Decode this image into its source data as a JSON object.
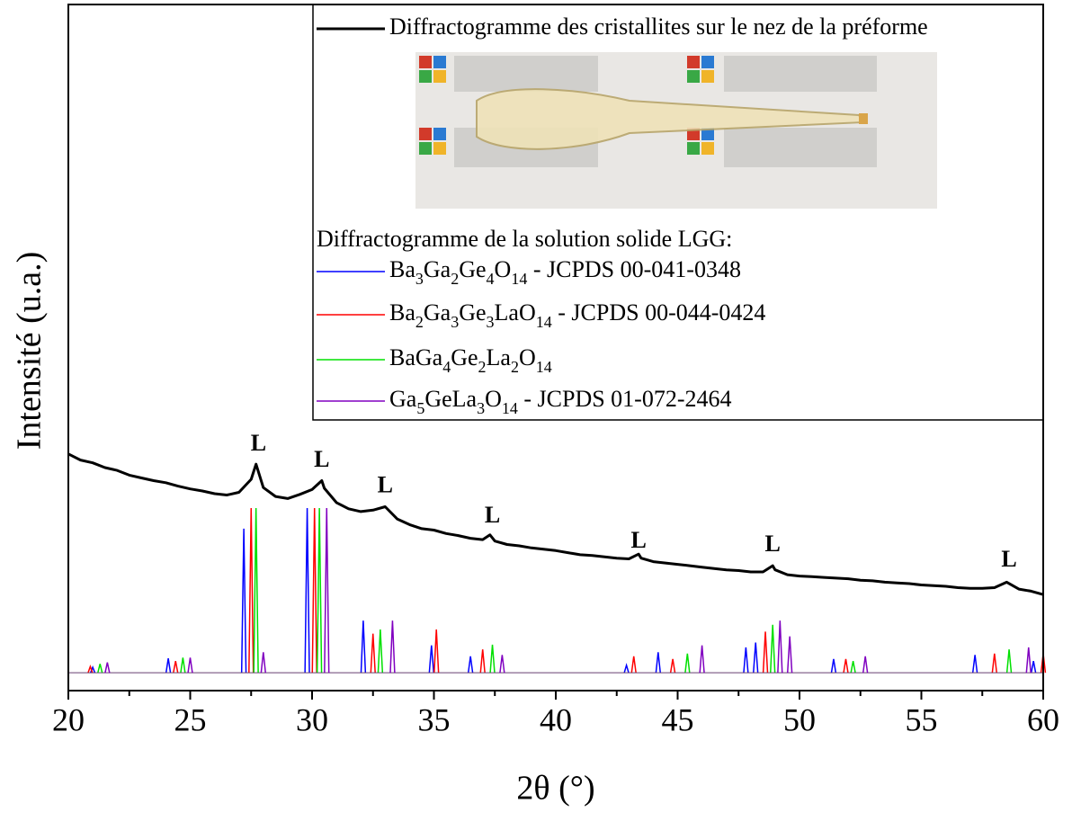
{
  "chart_data": {
    "type": "line",
    "xlabel": "2θ (°)",
    "ylabel": "Intensité (u.a.)",
    "xlim": [
      20,
      60
    ],
    "ylim": [
      0,
      100
    ],
    "xticks": [
      20,
      25,
      30,
      35,
      40,
      45,
      50,
      55,
      60
    ],
    "xminorticks": [
      22.5,
      27.5,
      32.5,
      37.5,
      42.5,
      47.5,
      52.5,
      57.5
    ],
    "legend": "upper right",
    "legend_title": "Diffractogramme de la solution solide LGG:",
    "baseline": 2.6,
    "series": [
      {
        "name": "Diffractogramme des cristallites sur le nez de la préforme",
        "color": "#000000",
        "style": "line",
        "x": [
          20,
          20.5,
          21,
          21.5,
          22,
          22.5,
          23,
          23.5,
          24,
          24.5,
          25,
          25.5,
          26,
          26.5,
          27,
          27.5,
          27.7,
          28,
          28.5,
          29,
          29.5,
          30,
          30.4,
          30.5,
          31,
          31.5,
          32,
          32.5,
          33,
          33.5,
          34,
          34.5,
          35,
          35.5,
          36,
          36.5,
          37,
          37.3,
          37.5,
          38,
          38.5,
          39,
          39.5,
          40,
          40.5,
          41,
          41.5,
          42,
          42.5,
          43,
          43.4,
          43.5,
          44,
          44.5,
          45,
          45.5,
          46,
          46.5,
          47,
          47.5,
          48,
          48.5,
          48.9,
          49,
          49.5,
          50,
          50.5,
          51,
          51.5,
          52,
          52.5,
          53,
          53.5,
          54,
          54.5,
          55,
          55.5,
          56,
          56.5,
          57,
          57.5,
          58,
          58.5,
          59,
          59.5,
          60
        ],
        "values": [
          34.5,
          33.6,
          33.2,
          32.5,
          32.1,
          31.4,
          31.0,
          30.6,
          30.3,
          29.8,
          29.4,
          29.1,
          28.7,
          28.5,
          28.9,
          30.8,
          33.0,
          29.6,
          28.3,
          28.0,
          28.6,
          29.3,
          30.6,
          29.5,
          27.4,
          26.5,
          26.1,
          26.3,
          26.8,
          25.0,
          24.2,
          23.6,
          23.4,
          22.9,
          22.6,
          22.2,
          22.0,
          22.7,
          21.8,
          21.3,
          21.1,
          20.8,
          20.6,
          20.4,
          20.1,
          19.8,
          19.7,
          19.5,
          19.3,
          19.2,
          19.9,
          19.3,
          18.8,
          18.6,
          18.4,
          18.2,
          18.0,
          17.8,
          17.6,
          17.5,
          17.3,
          17.3,
          18.2,
          17.6,
          16.9,
          16.7,
          16.6,
          16.5,
          16.4,
          16.3,
          16.1,
          16.0,
          15.8,
          15.7,
          15.6,
          15.4,
          15.3,
          15.2,
          15.0,
          14.9,
          14.9,
          15.0,
          15.8,
          14.8,
          14.5,
          14.0
        ]
      },
      {
        "name": "Ba3Ga2Ge4O14 - JCPDS 00-041-0348",
        "color": "#0000ff",
        "style": "stick",
        "x": [
          21.0,
          24.1,
          27.2,
          29.8,
          32.1,
          34.9,
          36.5,
          42.9,
          44.2,
          47.8,
          48.2,
          51.4,
          57.2,
          59.6
        ],
        "values": [
          3.4,
          4.7,
          23.6,
          26.6,
          10.2,
          6.6,
          5.0,
          3.7,
          5.6,
          6.3,
          7.0,
          4.6,
          5.2,
          4.3
        ]
      },
      {
        "name": "Ba2Ga3Ge3LaO14 - JCPDS 00-044-0424",
        "color": "#ff0000",
        "style": "stick",
        "x": [
          20.9,
          24.4,
          27.5,
          30.1,
          32.5,
          35.1,
          37.0,
          43.2,
          44.8,
          48.6,
          51.9,
          58.0,
          60.0
        ],
        "values": [
          3.5,
          4.3,
          26.6,
          26.6,
          8.3,
          8.9,
          6.0,
          5.0,
          4.6,
          8.6,
          4.6,
          5.4,
          5.4
        ]
      },
      {
        "name": "BaGa4Ge2La2O14",
        "color": "#00e000",
        "style": "stick",
        "x": [
          21.3,
          24.7,
          27.7,
          30.3,
          32.8,
          37.4,
          45.4,
          48.9,
          52.2,
          58.6
        ],
        "values": [
          3.9,
          4.8,
          26.6,
          26.6,
          8.9,
          6.7,
          5.4,
          9.6,
          4.3,
          6.0
        ]
      },
      {
        "name": "Ga5GeLa3O14 - JCPDS 01-072-2464",
        "color": "#8000c0",
        "style": "stick",
        "x": [
          21.6,
          25.0,
          28.0,
          30.6,
          33.3,
          37.8,
          46.0,
          49.2,
          49.6,
          52.7,
          59.4
        ],
        "values": [
          4.1,
          4.8,
          5.6,
          26.6,
          10.2,
          5.2,
          6.6,
          10.2,
          7.9,
          5.0,
          6.3
        ]
      }
    ],
    "annotations": [
      {
        "text": "L",
        "x": 27.8,
        "y": 35.8
      },
      {
        "text": "L",
        "x": 30.4,
        "y": 33.4
      },
      {
        "text": "L",
        "x": 33.0,
        "y": 29.7
      },
      {
        "text": "L",
        "x": 37.4,
        "y": 25.3
      },
      {
        "text": "L",
        "x": 43.4,
        "y": 21.6
      },
      {
        "text": "L",
        "x": 48.9,
        "y": 21.1
      },
      {
        "text": "L",
        "x": 58.6,
        "y": 18.9
      }
    ]
  }
}
